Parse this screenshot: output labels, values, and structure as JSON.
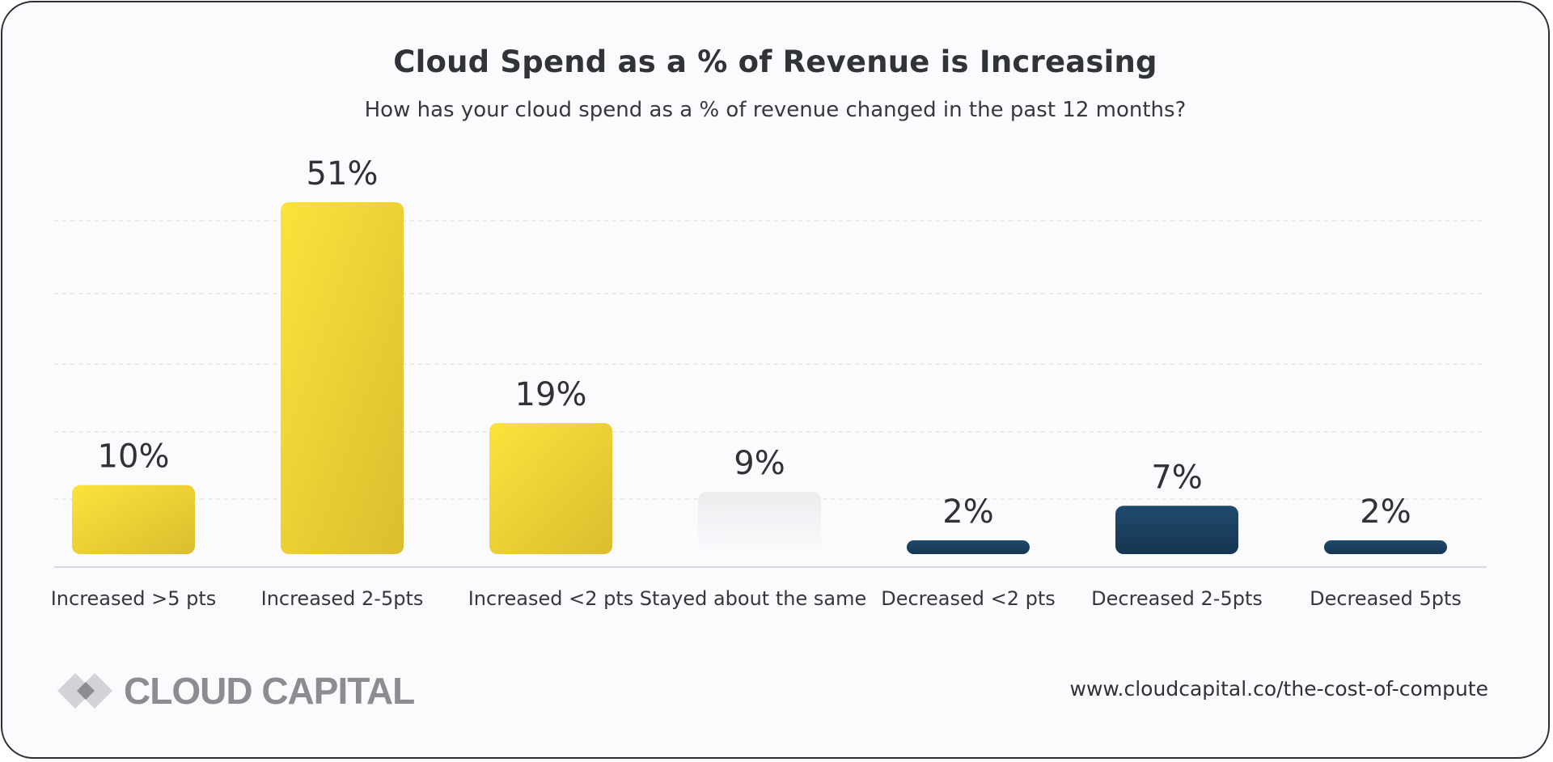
{
  "header": {
    "title": "Cloud Spend as a % of Revenue is Increasing",
    "subtitle": "How has your cloud spend as a % of revenue changed in the past 12 months?"
  },
  "chart_data": {
    "type": "bar",
    "title": "Cloud Spend as a % of Revenue is Increasing",
    "subtitle": "How has your cloud spend as a % of revenue changed in the past 12 months?",
    "categories": [
      "Increased >5 pts",
      "Increased 2-5pts",
      "Increased <2 pts",
      "Stayed about the same",
      "Decreased <2 pts",
      "Decreased 2-5pts",
      "Decreased 5pts"
    ],
    "values": [
      10,
      51,
      19,
      9,
      2,
      7,
      2
    ],
    "value_labels": [
      "10%",
      "51%",
      "19%",
      "9%",
      "2%",
      "7%",
      "2%"
    ],
    "bar_groups": [
      "increase",
      "increase",
      "increase",
      "same",
      "decrease",
      "decrease",
      "decrease"
    ],
    "colors": {
      "increase_start": "#fde23c",
      "increase_end": "#dcbd2e",
      "same_start": "#ecebee",
      "same_end": "#fbfafd",
      "decrease_start": "#1f4a6d",
      "decrease_end": "#173651",
      "gridline": "#e3e2e6",
      "baseline": "#d9d8dc"
    },
    "ylim": [
      0,
      51
    ],
    "grid": true,
    "xlabel": "",
    "ylabel": ""
  },
  "footer": {
    "logo_text": "CLOUD CAPITAL",
    "source_url": "www.cloudcapital.co/the-cost-of-compute"
  }
}
